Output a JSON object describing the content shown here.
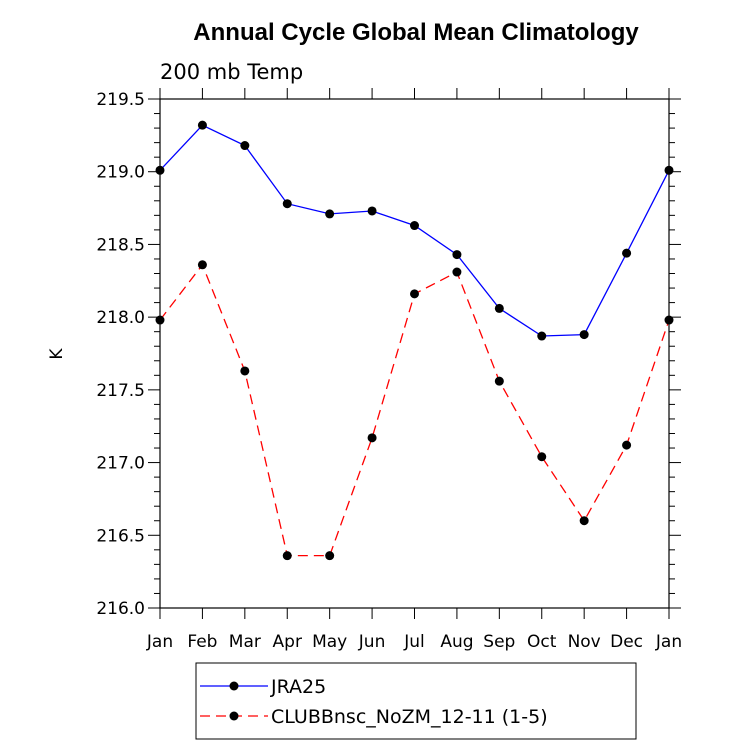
{
  "chart_data": {
    "type": "line",
    "title": "Annual Cycle Global Mean Climatology",
    "subtitle": "200 mb Temp",
    "xlabel": "",
    "ylabel": "K",
    "categories": [
      "Jan",
      "Feb",
      "Mar",
      "Apr",
      "May",
      "Jun",
      "Jul",
      "Aug",
      "Sep",
      "Oct",
      "Nov",
      "Dec",
      "Jan"
    ],
    "ylim": [
      216.0,
      219.5
    ],
    "yticks": [
      216.0,
      216.5,
      217.0,
      217.5,
      218.0,
      218.5,
      219.0,
      219.5
    ],
    "ytick_labels": [
      "216.0",
      "216.5",
      "217.0",
      "217.5",
      "218.0",
      "218.5",
      "219.0",
      "219.5"
    ],
    "legend_position": "bottom",
    "series": [
      {
        "name": "JRA25",
        "color": "#0000ff",
        "dash": "solid",
        "values": [
          219.01,
          219.32,
          219.18,
          218.78,
          218.71,
          218.73,
          218.63,
          218.43,
          218.06,
          217.87,
          217.88,
          218.44,
          219.01
        ]
      },
      {
        "name": "CLUBBnsc_NoZM_12-11 (1-5)",
        "color": "#ff0000",
        "dash": "dashed",
        "values": [
          217.98,
          218.36,
          217.63,
          216.36,
          216.36,
          217.17,
          218.16,
          218.31,
          217.56,
          217.04,
          216.6,
          217.12,
          217.98
        ]
      }
    ]
  }
}
